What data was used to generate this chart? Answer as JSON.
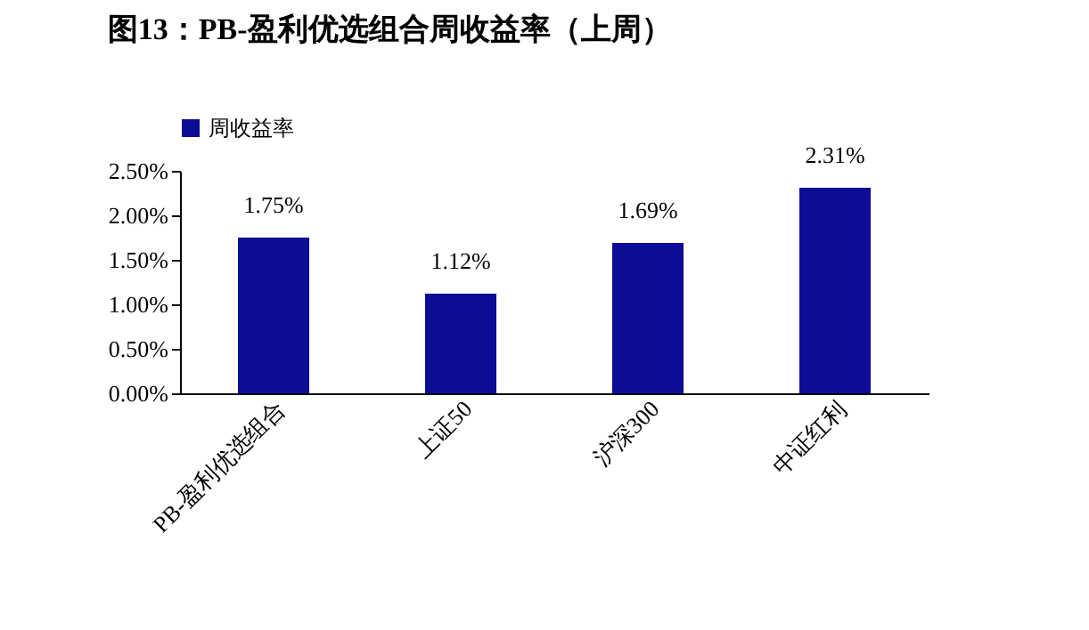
{
  "chart_data": {
    "type": "bar",
    "title": "图13：PB-盈利优选组合周收益率（上周）",
    "categories": [
      "PB-盈利优选组合",
      "上证50",
      "沪深300",
      "中证红利"
    ],
    "series": [
      {
        "name": "周收益率",
        "color": "#0c0c96",
        "values": [
          1.75,
          1.12,
          1.69,
          2.31
        ],
        "value_labels": [
          "1.75%",
          "1.12%",
          "1.69%",
          "2.31%"
        ]
      }
    ],
    "ylim": [
      0,
      2.5
    ],
    "yticks": [
      {
        "value": 0,
        "label": "0.00%"
      },
      {
        "value": 0.5,
        "label": "0.50%"
      },
      {
        "value": 1.0,
        "label": "1.00%"
      },
      {
        "value": 1.5,
        "label": "1.50%"
      },
      {
        "value": 2.0,
        "label": "2.00%"
      },
      {
        "value": 2.5,
        "label": "2.50%"
      }
    ],
    "grid": false,
    "legend": "top"
  }
}
